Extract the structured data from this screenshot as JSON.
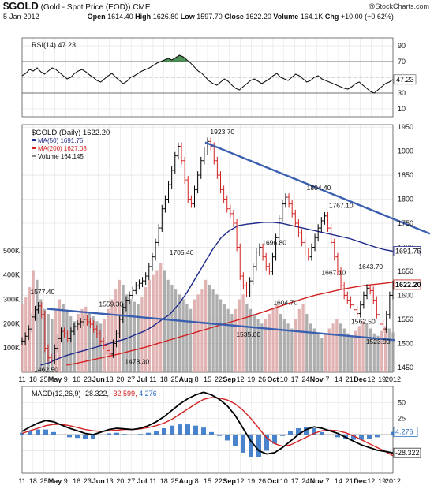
{
  "header": {
    "symbol": "$GOLD",
    "name": "(Gold - Spot Price (EOD))",
    "exchange": "CME",
    "watermark": "@StockCharts.com",
    "date": "5-Jan-2012",
    "open_label": "Open",
    "open": "1614.40",
    "high_label": "High",
    "high": "1626.80",
    "low_label": "Low",
    "low": "1597.70",
    "close_label": "Close",
    "close": "1622.20",
    "volume_label": "Volume",
    "volume": "164.1K",
    "chg_label": "Chg",
    "chg": "+10.00 (+0.62%)"
  },
  "chart_data": [
    {
      "type": "line",
      "title": "RSI(14) 47.23",
      "ylim": [
        0,
        100
      ],
      "y_ticks": [
        10,
        30,
        50,
        70,
        90
      ],
      "reference_lines": [
        30,
        70
      ],
      "last_value_label": "47.23",
      "series": [
        {
          "name": "RSI(14)",
          "values": [
            52,
            55,
            60,
            58,
            62,
            57,
            54,
            58,
            62,
            60,
            56,
            52,
            48,
            50,
            55,
            58,
            60,
            57,
            53,
            50,
            46,
            44,
            48,
            52,
            55,
            50,
            46,
            42,
            45,
            50,
            52,
            55,
            58,
            60,
            62,
            65,
            68,
            70,
            72,
            74,
            72,
            75,
            78,
            76,
            72,
            68,
            63,
            58,
            55,
            50,
            45,
            42,
            40,
            44,
            48,
            45,
            40,
            36,
            34,
            38,
            42,
            46,
            48,
            45,
            42,
            45,
            48,
            52,
            55,
            50,
            48,
            46,
            50,
            54,
            52,
            48,
            44,
            46,
            50,
            52,
            48,
            46,
            44,
            42,
            40,
            38,
            36,
            35,
            38,
            42,
            44,
            40,
            36,
            32,
            30,
            34,
            38,
            42,
            44,
            47.23
          ]
        }
      ]
    },
    {
      "type": "line",
      "title": "$GOLD (Daily) 1622.20",
      "ylim": [
        1440,
        1955
      ],
      "y_ticks": [
        1450,
        1500,
        1550,
        1600,
        1650,
        1700,
        1750,
        1800,
        1850,
        1900,
        1950
      ],
      "x_tick_labels": [
        "11",
        "18",
        "25",
        "May",
        "9",
        "16",
        "23",
        "Jun",
        "13",
        "20",
        "27",
        "Jul",
        "11",
        "18",
        "25",
        "Aug",
        "8",
        "15",
        "22",
        "Sep",
        "12",
        "19",
        "26",
        "Oct",
        "10",
        "17",
        "24",
        "Nov",
        "7",
        "14",
        "21",
        "Dec",
        "12",
        "19",
        "2012"
      ],
      "volume_axis_labels": [
        "100K",
        "200K",
        "300K",
        "400K",
        "500K"
      ],
      "legend": [
        {
          "label": "MA(50) 1691.75",
          "color": "#1f2a8a"
        },
        {
          "label": "MA(200) 1627.08",
          "color": "#d32222"
        },
        {
          "label": "Volume 164,145",
          "color": "#888888"
        }
      ],
      "series": [
        {
          "name": "$GOLD (Daily)",
          "kind": "price",
          "values": [
            1505,
            1515,
            1530,
            1555,
            1570,
            1578,
            1560,
            1490,
            1470,
            1465,
            1490,
            1510,
            1525,
            1520,
            1510,
            1525,
            1535,
            1540,
            1545,
            1550,
            1545,
            1540,
            1530,
            1520,
            1505,
            1495,
            1485,
            1478,
            1500,
            1520,
            1550,
            1575,
            1590,
            1600,
            1610,
            1620,
            1625,
            1630,
            1640,
            1660,
            1680,
            1710,
            1740,
            1780,
            1800,
            1830,
            1860,
            1890,
            1910,
            1880,
            1840,
            1800,
            1790,
            1820,
            1850,
            1880,
            1900,
            1920,
            1910,
            1880,
            1850,
            1820,
            1800,
            1780,
            1770,
            1750,
            1700,
            1640,
            1620,
            1605,
            1630,
            1660,
            1690,
            1700,
            1680,
            1660,
            1650,
            1680,
            1720,
            1760,
            1790,
            1804,
            1790,
            1770,
            1750,
            1730,
            1710,
            1690,
            1680,
            1700,
            1720,
            1740,
            1755,
            1765,
            1740,
            1710,
            1680,
            1650,
            1620,
            1600,
            1590,
            1580,
            1570,
            1562,
            1580,
            1600,
            1615,
            1610,
            1590,
            1560,
            1540,
            1530,
            1560,
            1600,
            1622.2
          ]
        },
        {
          "name": "MA(50) 1691.75",
          "color": "#1f2a8a",
          "values": [
            1455,
            1460,
            1468,
            1475,
            1480,
            1485,
            1490,
            1495,
            1500,
            1505,
            1510,
            1518,
            1525,
            1535,
            1548,
            1560,
            1580,
            1605,
            1635,
            1665,
            1695,
            1720,
            1735,
            1745,
            1748,
            1750,
            1752,
            1752,
            1750,
            1746,
            1742,
            1738,
            1734,
            1730,
            1726,
            1722,
            1718,
            1712,
            1706,
            1700,
            1695,
            1691.75
          ]
        },
        {
          "name": "MA(200) 1627.08",
          "color": "#d32222",
          "values": [
            1455,
            1460,
            1466,
            1472,
            1478,
            1485,
            1492,
            1500,
            1508,
            1516,
            1524,
            1532,
            1540,
            1548,
            1556,
            1565,
            1574,
            1583,
            1592,
            1600,
            1606,
            1612,
            1617,
            1621,
            1624,
            1627.08
          ]
        }
      ],
      "annotations": [
        "1577.40",
        "1559.30",
        "1462.50",
        "1478.30",
        "1923.70",
        "1705.40",
        "1804.40",
        "1696.80",
        "1767.10",
        "1667.10",
        "1604.70",
        "1643.70",
        "1535.00",
        "1562.50",
        "1523.90"
      ],
      "last_value_labels": [
        "1691.75",
        "1622.20"
      ],
      "volume": [
        280,
        310,
        350,
        420,
        380,
        300,
        260,
        240,
        220,
        260,
        300,
        280,
        250,
        230,
        210,
        240,
        260,
        270,
        250,
        230,
        210,
        200,
        220,
        260,
        300,
        340,
        380,
        360,
        320,
        300,
        290,
        280,
        310,
        350,
        380,
        400,
        420,
        450,
        420,
        380,
        360,
        340,
        320,
        300,
        280,
        260,
        300,
        320,
        340,
        380,
        360,
        340,
        320,
        300,
        280,
        260,
        240,
        260,
        300,
        320,
        280,
        260,
        240,
        220,
        200,
        220,
        240,
        260,
        280,
        240,
        220,
        200,
        180,
        220,
        260,
        280,
        240,
        200,
        180,
        160,
        140,
        160,
        180,
        200,
        220,
        200,
        180,
        160,
        150,
        170,
        190,
        210,
        200,
        180,
        160,
        150,
        170,
        190,
        180,
        164
      ]
    },
    {
      "type": "line",
      "title": "MACD(12,26,9) -28.322, -32.599, 4.276",
      "ylim": [
        -60,
        75
      ],
      "y_ticks": [
        -25,
        0,
        25,
        50
      ],
      "last_value_labels": [
        "4.276",
        "-28.322"
      ],
      "series": [
        {
          "name": "MACD(12,26,9)",
          "color": "#000000",
          "values": [
            5,
            12,
            18,
            22,
            20,
            15,
            10,
            6,
            2,
            0,
            4,
            8,
            10,
            9,
            8,
            10,
            14,
            20,
            28,
            38,
            48,
            56,
            62,
            66,
            62,
            55,
            45,
            30,
            10,
            -10,
            -25,
            -30,
            -28,
            -20,
            -10,
            0,
            8,
            12,
            10,
            6,
            2,
            -4,
            -10,
            -16,
            -20,
            -24,
            -26,
            -28.322
          ]
        },
        {
          "name": "signal",
          "color": "#d32222",
          "values": [
            2,
            6,
            10,
            14,
            16,
            16,
            14,
            11,
            8,
            6,
            5,
            6,
            7,
            8,
            8,
            9,
            11,
            14,
            18,
            24,
            32,
            40,
            48,
            55,
            58,
            57,
            54,
            48,
            38,
            25,
            10,
            -5,
            -14,
            -18,
            -16,
            -10,
            -4,
            2,
            6,
            7,
            6,
            3,
            -2,
            -8,
            -14,
            -20,
            -26,
            -32.599
          ]
        },
        {
          "name": "histogram",
          "color": "#2a6fc4",
          "values": [
            3,
            6,
            8,
            8,
            4,
            -1,
            -4,
            -5,
            -6,
            -6,
            -1,
            2,
            3,
            1,
            0,
            1,
            3,
            6,
            10,
            14,
            16,
            16,
            14,
            11,
            4,
            -2,
            -9,
            -18,
            -28,
            -35,
            -35,
            -25,
            -14,
            -2,
            6,
            10,
            12,
            10,
            4,
            -1,
            -4,
            -7,
            -8,
            -8,
            -6,
            -4,
            0,
            4.276
          ]
        }
      ],
      "x_tick_labels": [
        "11",
        "18",
        "25",
        "May",
        "9",
        "16",
        "23",
        "Jun",
        "13",
        "20",
        "27",
        "Jul",
        "11",
        "18",
        "25",
        "Aug",
        "8",
        "15",
        "22",
        "Sep",
        "12",
        "19",
        "26",
        "Oct",
        "10",
        "17",
        "24",
        "Nov",
        "7",
        "14",
        "21",
        "Dec",
        "12",
        "19",
        "2012"
      ]
    }
  ]
}
